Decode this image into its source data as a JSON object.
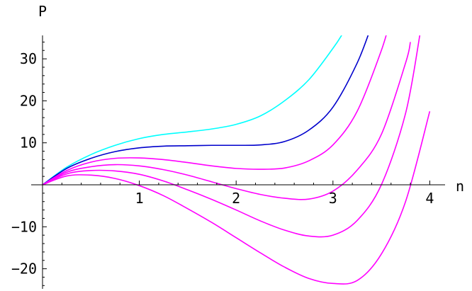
{
  "chart_data": {
    "type": "line",
    "title": "",
    "xlabel": "n",
    "ylabel": "P",
    "xlim": [
      0,
      4.1
    ],
    "ylim": [
      -25,
      35
    ],
    "grid": false,
    "x_ticks": [
      {
        "value": 1,
        "label": "1"
      },
      {
        "value": 2,
        "label": "2"
      },
      {
        "value": 3,
        "label": "3"
      },
      {
        "value": 4,
        "label": "4"
      }
    ],
    "y_ticks": [
      {
        "value": -20,
        "label": "−20"
      },
      {
        "value": -10,
        "label": "−10"
      },
      {
        "value": 10,
        "label": "10"
      },
      {
        "value": 20,
        "label": "20"
      },
      {
        "value": 30,
        "label": "30"
      }
    ],
    "series": [
      {
        "color": "#00ffff",
        "x": [
          0,
          0.25,
          0.5,
          0.75,
          1.0,
          1.25,
          1.5,
          1.75,
          2.0,
          2.25,
          2.5,
          2.75,
          3.0,
          3.1,
          3.2
        ],
        "y": [
          0,
          4.2,
          7.2,
          9.4,
          11.0,
          12.0,
          12.6,
          13.3,
          14.4,
          16.4,
          20.0,
          25.0,
          32.5,
          36.0,
          40.0
        ]
      },
      {
        "color": "#0000cc",
        "x": [
          0,
          0.25,
          0.5,
          0.75,
          1.0,
          1.25,
          1.5,
          1.75,
          2.0,
          2.25,
          2.5,
          2.75,
          3.0,
          3.25,
          3.4
        ],
        "y": [
          0,
          3.9,
          6.3,
          7.9,
          8.8,
          9.2,
          9.3,
          9.4,
          9.4,
          9.5,
          10.3,
          13.0,
          18.5,
          29.0,
          38.0
        ]
      },
      {
        "color": "#ff00ff",
        "x": [
          0,
          0.25,
          0.5,
          0.75,
          1.0,
          1.25,
          1.5,
          1.75,
          2.0,
          2.25,
          2.5,
          2.75,
          3.0,
          3.25,
          3.5,
          3.6
        ],
        "y": [
          0,
          3.4,
          5.4,
          6.3,
          6.4,
          6.0,
          5.3,
          4.5,
          3.9,
          3.7,
          4.0,
          5.7,
          9.5,
          17.5,
          32.0,
          40.0
        ]
      },
      {
        "color": "#ff00ff",
        "x": [
          0,
          0.25,
          0.5,
          0.75,
          1.0,
          1.25,
          1.5,
          1.75,
          2.0,
          2.25,
          2.5,
          2.75,
          3.0,
          3.25,
          3.5,
          3.75,
          3.8
        ],
        "y": [
          0,
          3.0,
          4.3,
          4.8,
          4.5,
          3.6,
          2.3,
          0.7,
          -0.9,
          -2.3,
          -3.2,
          -3.4,
          -1.5,
          3.5,
          12.0,
          29.0,
          34.0
        ]
      },
      {
        "color": "#ff00ff",
        "x": [
          0,
          0.25,
          0.5,
          0.75,
          1.0,
          1.25,
          1.5,
          1.75,
          2.0,
          2.25,
          2.5,
          2.75,
          3.0,
          3.25,
          3.5,
          3.75,
          3.9
        ],
        "y": [
          0,
          2.6,
          3.4,
          3.3,
          2.5,
          0.9,
          -1.2,
          -3.5,
          -6.0,
          -8.6,
          -10.8,
          -12.2,
          -12.0,
          -8.5,
          0,
          17.0,
          36.0
        ]
      },
      {
        "color": "#ff00ff",
        "x": [
          0,
          0.25,
          0.5,
          0.75,
          1.0,
          1.25,
          1.5,
          1.75,
          2.0,
          2.25,
          2.5,
          2.75,
          3.0,
          3.25,
          3.5,
          3.75,
          4.0
        ],
        "y": [
          0,
          2.1,
          2.3,
          1.5,
          -0.2,
          -2.6,
          -5.7,
          -9.0,
          -12.6,
          -16.2,
          -19.6,
          -22.3,
          -23.5,
          -22.8,
          -16.5,
          -4.0,
          17.5
        ]
      }
    ]
  }
}
